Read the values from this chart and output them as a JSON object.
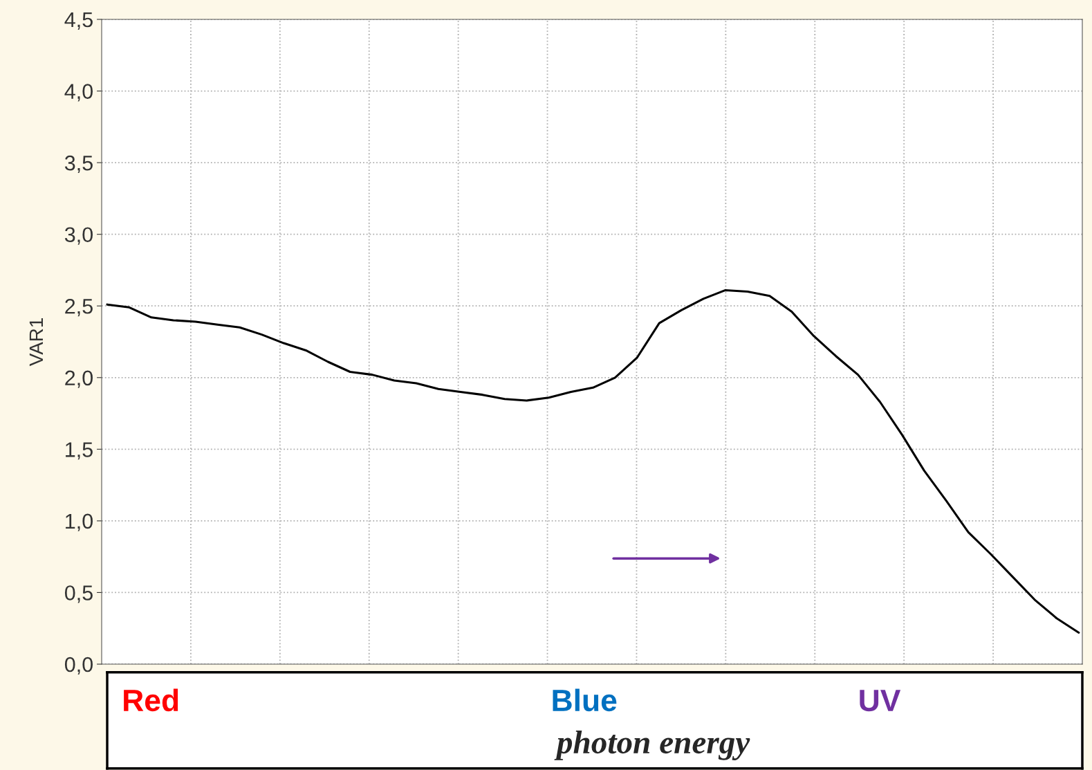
{
  "chart_data": {
    "type": "line",
    "ylabel": "VAR1",
    "xlabel": "photon energy",
    "annotations": [
      "Red",
      "Blue",
      "UV"
    ],
    "categories": [
      null,
      null,
      null,
      null,
      null,
      null,
      null,
      null,
      null,
      null,
      null,
      null,
      null,
      null,
      null,
      null,
      null,
      null,
      null,
      null,
      null,
      null,
      null,
      null,
      null,
      null,
      null,
      null,
      null,
      null,
      null,
      null,
      null,
      null,
      null,
      null,
      null,
      null,
      null,
      null,
      null,
      null,
      null,
      null,
      null
    ],
    "series": [
      {
        "color": "#000000",
        "values": [
          2.51,
          2.49,
          2.42,
          2.4,
          2.39,
          2.37,
          2.35,
          2.3,
          2.24,
          2.19,
          2.11,
          2.04,
          2.02,
          1.98,
          1.96,
          1.92,
          1.9,
          1.88,
          1.85,
          1.84,
          1.86,
          1.9,
          1.93,
          2.0,
          2.14,
          2.38,
          2.47,
          2.55,
          2.61,
          2.6,
          2.57,
          2.46,
          2.29,
          2.15,
          2.02,
          1.83,
          1.6,
          1.35,
          1.14,
          0.92,
          0.77,
          0.61,
          0.45,
          0.32,
          0.22
        ]
      }
    ],
    "ylim": [
      0,
      4.5
    ],
    "yticks": [
      {
        "value": 0,
        "label": "0,0"
      },
      {
        "value": 0.5,
        "label": "0,5"
      },
      {
        "value": 1,
        "label": "1,0"
      },
      {
        "value": 1.5,
        "label": "1,5"
      },
      {
        "value": 2,
        "label": "2,0"
      },
      {
        "value": 2.5,
        "label": "2,5"
      },
      {
        "value": 3,
        "label": "3,0"
      },
      {
        "value": 3.5,
        "label": "3,5"
      },
      {
        "value": 4,
        "label": "4,0"
      },
      {
        "value": 4.5,
        "label": "4,5"
      }
    ],
    "grid": true,
    "marker": "none",
    "line_style": "solid"
  }
}
